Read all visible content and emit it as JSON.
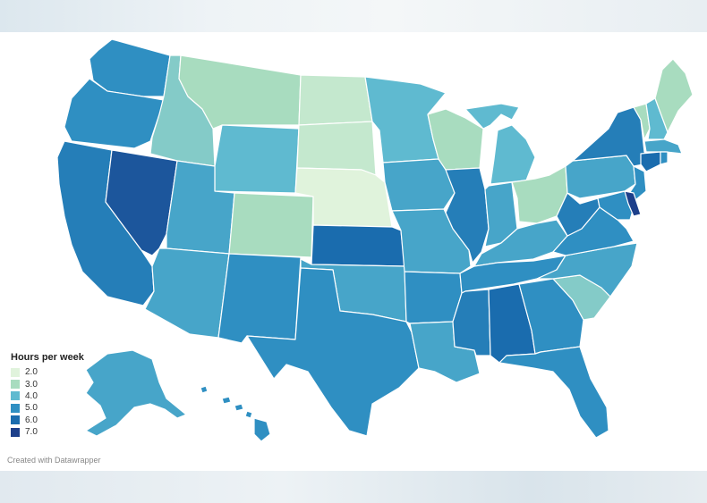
{
  "legend": {
    "title": "Hours per week",
    "items": [
      {
        "label": "2.0",
        "color": "#e0f3dc"
      },
      {
        "label": "3.0",
        "color": "#a8dcbf"
      },
      {
        "label": "4.0",
        "color": "#5fbad0"
      },
      {
        "label": "5.0",
        "color": "#2f8fc2"
      },
      {
        "label": "6.0",
        "color": "#1a6cae"
      },
      {
        "label": "7.0",
        "color": "#1d3f8a"
      }
    ]
  },
  "credit": "Created with Datawrapper",
  "states": [
    {
      "id": "WA",
      "value": 5.0
    },
    {
      "id": "OR",
      "value": 5.0
    },
    {
      "id": "CA",
      "value": 5.5
    },
    {
      "id": "NV",
      "value": 6.5
    },
    {
      "id": "ID",
      "value": 3.5
    },
    {
      "id": "MT",
      "value": 3.0
    },
    {
      "id": "WY",
      "value": 4.0
    },
    {
      "id": "UT",
      "value": 4.5
    },
    {
      "id": "AZ",
      "value": 4.5
    },
    {
      "id": "CO",
      "value": 3.0
    },
    {
      "id": "NM",
      "value": 5.0
    },
    {
      "id": "ND",
      "value": 2.5
    },
    {
      "id": "SD",
      "value": 2.5
    },
    {
      "id": "NE",
      "value": 2.0
    },
    {
      "id": "KS",
      "value": 6.0
    },
    {
      "id": "OK",
      "value": 4.5
    },
    {
      "id": "TX",
      "value": 5.0
    },
    {
      "id": "MN",
      "value": 4.0
    },
    {
      "id": "IA",
      "value": 4.5
    },
    {
      "id": "MO",
      "value": 4.5
    },
    {
      "id": "AR",
      "value": 5.0
    },
    {
      "id": "LA",
      "value": 4.5
    },
    {
      "id": "WI",
      "value": 3.0
    },
    {
      "id": "IL",
      "value": 5.5
    },
    {
      "id": "MI",
      "value": 4.0
    },
    {
      "id": "IN",
      "value": 4.5
    },
    {
      "id": "OH",
      "value": 3.0
    },
    {
      "id": "KY",
      "value": 4.5
    },
    {
      "id": "TN",
      "value": 5.0
    },
    {
      "id": "MS",
      "value": 5.5
    },
    {
      "id": "AL",
      "value": 6.0
    },
    {
      "id": "GA",
      "value": 5.0
    },
    {
      "id": "FL",
      "value": 5.0
    },
    {
      "id": "SC",
      "value": 3.5
    },
    {
      "id": "NC",
      "value": 4.5
    },
    {
      "id": "VA",
      "value": 5.0
    },
    {
      "id": "WV",
      "value": 5.5
    },
    {
      "id": "PA",
      "value": 4.5
    },
    {
      "id": "NY",
      "value": 5.5
    },
    {
      "id": "VT",
      "value": 3.0
    },
    {
      "id": "NH",
      "value": 4.0
    },
    {
      "id": "ME",
      "value": 3.0
    },
    {
      "id": "MA",
      "value": 4.5
    },
    {
      "id": "CT",
      "value": 6.0
    },
    {
      "id": "RI",
      "value": 5.0
    },
    {
      "id": "NJ",
      "value": 5.0
    },
    {
      "id": "DE",
      "value": 7.0
    },
    {
      "id": "MD",
      "value": 5.0
    },
    {
      "id": "AK",
      "value": 4.5
    },
    {
      "id": "HI",
      "value": 5.0
    }
  ]
}
